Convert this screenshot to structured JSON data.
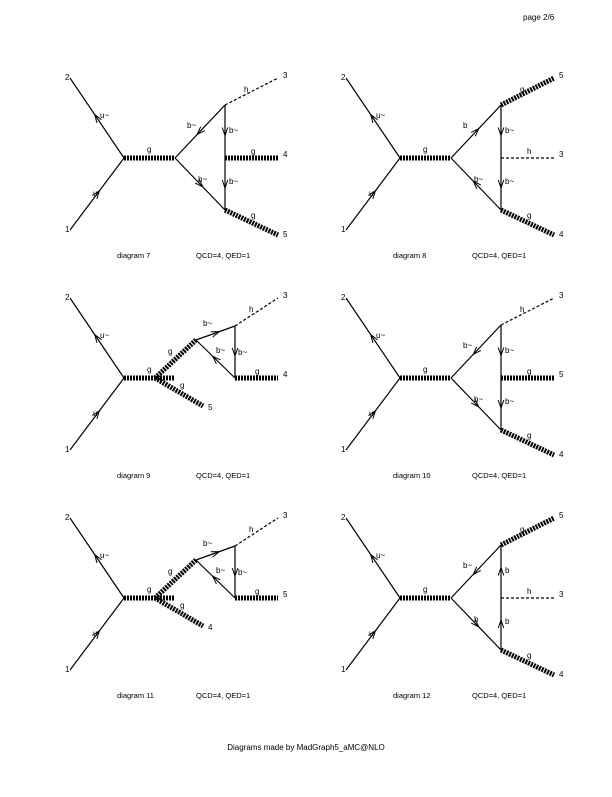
{
  "page": {
    "number": "page 2/6"
  },
  "footer": {
    "text": "Diagrams made by MadGraph5_aMC@NLO"
  },
  "diagrams": [
    {
      "caption": "diagram 7",
      "couplings": "QCD=4, QED=1",
      "labels": {
        "ext_top": "2",
        "ext_bottom": "1",
        "in_top": "u~",
        "in_bottom": "u",
        "s_channel": "g",
        "out_top": "3",
        "out_mid": "4",
        "out_bot": "5",
        "p_top": "h",
        "p_mid": "g",
        "p_bot": "g",
        "prop_upper": "b~",
        "prop_lower": "b~",
        "vert_top": "b~",
        "vert_bot": "b~"
      }
    },
    {
      "caption": "diagram 8",
      "couplings": "QCD=4, QED=1",
      "labels": {
        "ext_top": "2",
        "ext_bottom": "1",
        "in_top": "u~",
        "in_bottom": "u",
        "s_channel": "g",
        "out_top": "5",
        "out_mid": "3",
        "out_bot": "4",
        "p_top": "g",
        "p_mid": "h",
        "p_bot": "g",
        "prop_upper": "b",
        "prop_lower": "b~",
        "vert_top": "b~",
        "vert_bot": "b~"
      }
    },
    {
      "caption": "diagram 9",
      "couplings": "QCD=4, QED=1",
      "labels": {
        "ext_top": "2",
        "ext_bottom": "1",
        "in_top": "u~",
        "in_bottom": "u",
        "s_channel": "g",
        "out_top": "3",
        "out_mid": "4",
        "out_bot": "5",
        "p_top": "h",
        "p_mid": "g",
        "p_bot": "g",
        "gluon_up": "g",
        "prop_upper": "b~",
        "prop_lower": "b~",
        "vert": "b~"
      }
    },
    {
      "caption": "diagram 10",
      "couplings": "QCD=4, QED=1",
      "labels": {
        "ext_top": "2",
        "ext_bottom": "1",
        "in_top": "u~",
        "in_bottom": "u",
        "s_channel": "g",
        "out_top": "3",
        "out_mid": "5",
        "out_bot": "4",
        "p_top": "h",
        "p_mid": "g",
        "p_bot": "g",
        "prop_upper": "b~",
        "prop_lower": "b~",
        "vert_top": "b~",
        "vert_bot": "b~"
      }
    },
    {
      "caption": "diagram 11",
      "couplings": "QCD=4, QED=1",
      "labels": {
        "ext_top": "2",
        "ext_bottom": "1",
        "in_top": "u~",
        "in_bottom": "u",
        "s_channel": "g",
        "out_top": "3",
        "out_mid": "5",
        "out_bot": "4",
        "p_top": "h",
        "p_mid": "g",
        "p_bot": "g",
        "gluon_up": "g",
        "prop_upper": "b~",
        "prop_lower": "b~",
        "vert": "b~"
      }
    },
    {
      "caption": "diagram 12",
      "couplings": "QCD=4, QED=1",
      "labels": {
        "ext_top": "2",
        "ext_bottom": "1",
        "in_top": "u~",
        "in_bottom": "u",
        "s_channel": "g",
        "out_top": "5",
        "out_mid": "3",
        "out_bot": "4",
        "p_top": "g",
        "p_mid": "h",
        "p_bot": "g",
        "prop_upper": "b~",
        "prop_lower": "b",
        "vert_top": "b",
        "vert_bot": "b"
      }
    }
  ]
}
